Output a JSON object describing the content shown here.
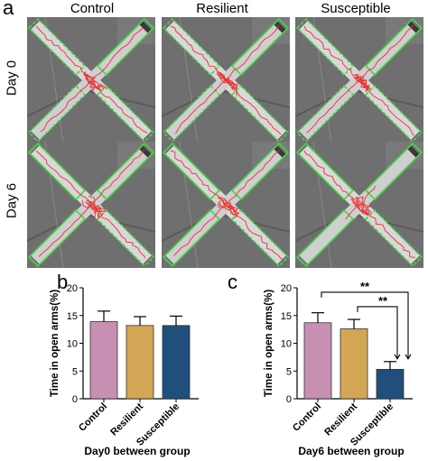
{
  "panel_a": {
    "letter": "a",
    "columns": [
      "Control",
      "Resilient",
      "Susceptible"
    ],
    "rows": [
      "Day 0",
      "Day 6"
    ]
  },
  "panel_b": {
    "letter": "b"
  },
  "panel_c": {
    "letter": "c"
  },
  "colors": {
    "control": "#c78fb2",
    "resilient": "#d2a654",
    "susceptible": "#1f4f7a",
    "track": "#e53030",
    "zone": "#4cd14c"
  },
  "chart_data": [
    {
      "type": "bar",
      "categories": [
        "Control",
        "Resilient",
        "Susceptible"
      ],
      "values": [
        13.9,
        13.2,
        13.2
      ],
      "errors": [
        1.9,
        1.6,
        1.7
      ],
      "ylabel": "Time in open arms(%)",
      "xlabel": "Day0 between group",
      "ylim": [
        0,
        20
      ],
      "yticks": [
        0,
        5,
        10,
        15,
        20
      ],
      "significance": []
    },
    {
      "type": "bar",
      "categories": [
        "Control",
        "Resilient",
        "Susceptible"
      ],
      "values": [
        13.7,
        12.6,
        5.3
      ],
      "errors": [
        1.8,
        1.7,
        1.4
      ],
      "ylabel": "Time in open arms(%)",
      "xlabel": "Day6 between group",
      "ylim": [
        0,
        20
      ],
      "yticks": [
        0,
        5,
        10,
        15,
        20
      ],
      "significance": [
        {
          "from": 0,
          "to": 2,
          "label": "**"
        },
        {
          "from": 1,
          "to": 2,
          "label": "**"
        }
      ]
    }
  ]
}
